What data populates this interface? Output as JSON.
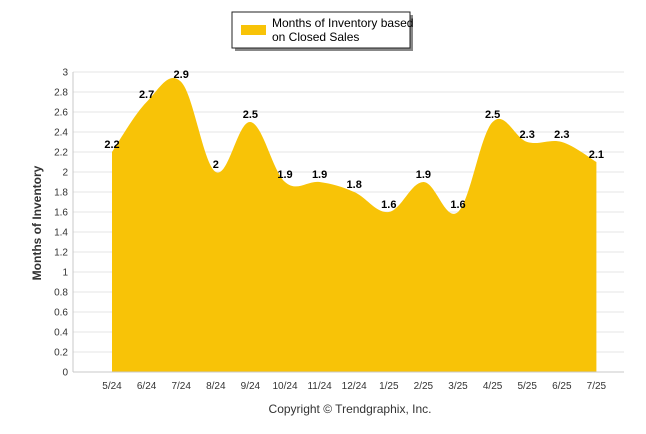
{
  "chart_data": {
    "type": "area",
    "categories": [
      "5/24",
      "6/24",
      "7/24",
      "8/24",
      "9/24",
      "10/24",
      "11/24",
      "12/24",
      "1/25",
      "2/25",
      "3/25",
      "4/25",
      "5/25",
      "6/25",
      "7/25"
    ],
    "series": [
      {
        "name": "Months of Inventory based on Closed Sales",
        "values": [
          2.2,
          2.7,
          2.9,
          2,
          2.5,
          1.9,
          1.9,
          1.8,
          1.6,
          1.9,
          1.6,
          2.5,
          2.3,
          2.3,
          2.1
        ],
        "color": "#F8C307"
      }
    ],
    "data_labels": [
      "2.2",
      "2.7",
      "2.9",
      "2",
      "2.5",
      "1.9",
      "1.9",
      "1.8",
      "1.6",
      "1.9",
      "1.6",
      "2.5",
      "2.3",
      "2.3",
      "2.1"
    ],
    "ylabel": "Months of Inventory",
    "xlabel": "",
    "ylim": [
      0,
      3
    ],
    "yticks": [
      "0",
      "0.2",
      "0.4",
      "0.6",
      "0.8",
      "1",
      "1.2",
      "1.4",
      "1.6",
      "1.8",
      "2",
      "2.2",
      "2.4",
      "2.6",
      "2.8",
      "3"
    ],
    "grid": true,
    "legend_position": "top-center",
    "legend_lines": [
      "Months of Inventory based",
      "on Closed Sales"
    ]
  },
  "footer": {
    "copyright": "Copyright © Trendgraphix, Inc."
  }
}
